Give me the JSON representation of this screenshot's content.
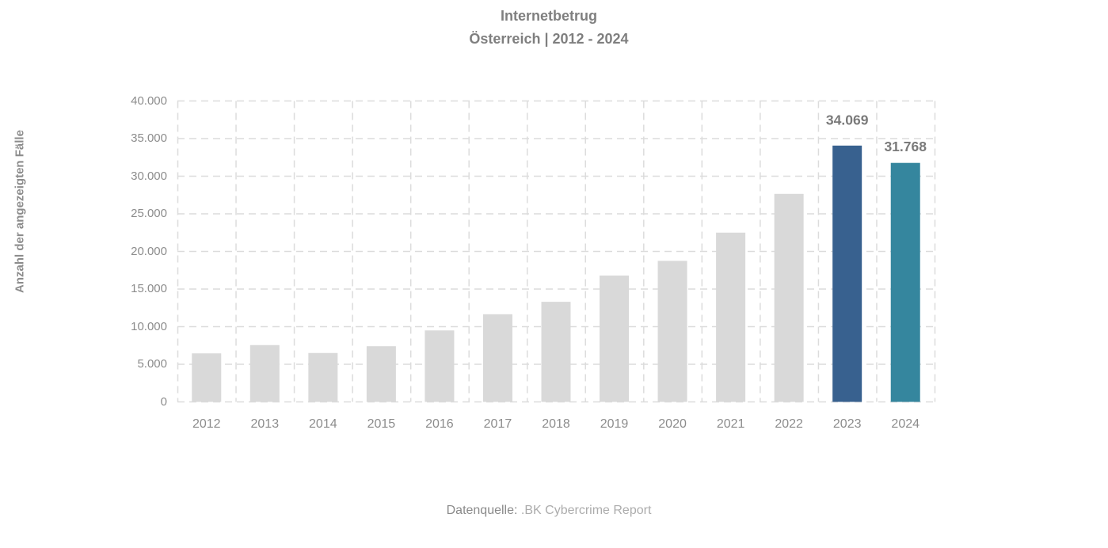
{
  "title": {
    "line1": "Internetbetrug",
    "line2": "Österreich | 2012 - 2024"
  },
  "y_axis": {
    "label": "Anzahl der angezeigten Fälle",
    "tick_labels": [
      "40.000",
      "35.000",
      "30.000",
      "25.000",
      "20.000",
      "15.000",
      "10.000",
      "5.000",
      "0"
    ]
  },
  "footer": {
    "prefix": "Datenquelle:",
    "source": " .BK Cybercrime Report"
  },
  "colors": {
    "bar_default": "#d9d9d9",
    "bar_2023": "#38618f",
    "bar_2024": "#35869e",
    "gridline": "#dcdcdc",
    "title_text": "#7f7f7f",
    "axis_text": "#8c8c8c",
    "value_label_text": "#7a7a7a"
  },
  "chart_data": {
    "type": "bar",
    "title": "Internetbetrug — Österreich | 2012 - 2024",
    "xlabel": "",
    "ylabel": "Anzahl der angezeigten Fälle",
    "ylim": [
      0,
      40000
    ],
    "ytick_step": 5000,
    "grid": "dashed",
    "legend_position": "none",
    "categories": [
      "2012",
      "2013",
      "2014",
      "2015",
      "2016",
      "2017",
      "2018",
      "2019",
      "2020",
      "2021",
      "2022",
      "2023",
      "2024"
    ],
    "values": [
      6450,
      7550,
      6500,
      7400,
      9500,
      11650,
      13300,
      16800,
      18750,
      22500,
      27650,
      34069,
      31768
    ],
    "bar_colors": [
      "#d9d9d9",
      "#d9d9d9",
      "#d9d9d9",
      "#d9d9d9",
      "#d9d9d9",
      "#d9d9d9",
      "#d9d9d9",
      "#d9d9d9",
      "#d9d9d9",
      "#d9d9d9",
      "#d9d9d9",
      "#38618f",
      "#35869e"
    ],
    "data_labels": [
      "",
      "",
      "",
      "",
      "",
      "",
      "",
      "",
      "",
      "",
      "",
      "34.069",
      "31.768"
    ]
  }
}
